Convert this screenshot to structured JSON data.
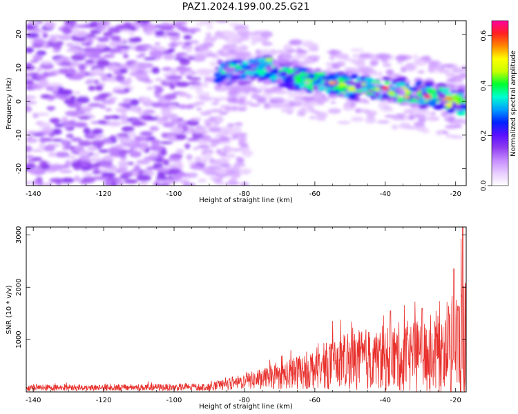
{
  "figure": {
    "title": "PAZ1.2024.199.00.25.G21"
  },
  "colors": {
    "background": "#ffffff",
    "axis": "#000000",
    "snr_line": "#e8302c",
    "colormap": [
      "#ffffff",
      "#e8ccff",
      "#c58cff",
      "#8f3cf0",
      "#5a10ff",
      "#0022ff",
      "#00a0ff",
      "#00ffd0",
      "#00ff30",
      "#c8ff00",
      "#ffff00",
      "#ff8800",
      "#ff2020",
      "#ff00a0"
    ]
  },
  "chart_data": [
    {
      "type": "heatmap",
      "title": "",
      "xlabel": "Height of straight line (km)",
      "ylabel": "Frequency (Hz)",
      "xlim": [
        -142,
        -17
      ],
      "ylim": [
        -25,
        24
      ],
      "xticks": [
        -140,
        -120,
        -100,
        -80,
        -60,
        -40,
        -20
      ],
      "yticks": [
        -20,
        -10,
        0,
        10,
        20
      ],
      "colorbar": {
        "label": "Normalized spectral amplitude",
        "range": [
          0.0,
          0.66
        ],
        "ticks": [
          0.0,
          0.2,
          0.4,
          0.6
        ]
      },
      "ridge": {
        "description_points": [
          [
            -88,
            8
          ],
          [
            -75,
            10
          ],
          [
            -65,
            7
          ],
          [
            -55,
            5
          ],
          [
            -45,
            4
          ],
          [
            -35,
            3
          ],
          [
            -25,
            1.5
          ],
          [
            -17,
            -1
          ]
        ],
        "peak_amplitude": 0.66
      },
      "noise_region": {
        "x_range": [
          -142,
          -85
        ],
        "max_amplitude": 0.12
      }
    },
    {
      "type": "line",
      "title": "",
      "xlabel": "Height of straight line (km)",
      "ylabel": "SNR (10 * v/v)",
      "xlim": [
        -142,
        -17
      ],
      "ylim": [
        0,
        3150
      ],
      "xticks": [
        -140,
        -120,
        -100,
        -80,
        -60,
        -40,
        -20
      ],
      "yticks": [
        1000,
        2000,
        3000
      ],
      "series": [
        {
          "name": "",
          "envelope": [
            {
              "x": -142,
              "mean": 80,
              "spread": 60
            },
            {
              "x": -90,
              "mean": 90,
              "spread": 70
            },
            {
              "x": -80,
              "mean": 200,
              "spread": 150
            },
            {
              "x": -70,
              "mean": 300,
              "spread": 250
            },
            {
              "x": -60,
              "mean": 450,
              "spread": 400
            },
            {
              "x": -50,
              "mean": 600,
              "spread": 550
            },
            {
              "x": -40,
              "mean": 650,
              "spread": 650
            },
            {
              "x": -30,
              "mean": 700,
              "spread": 700
            },
            {
              "x": -22,
              "mean": 800,
              "spread": 900
            },
            {
              "x": -17,
              "mean": 900,
              "spread": 1500
            }
          ],
          "peaks": [
            {
              "x": -20.5,
              "y": 2350
            },
            {
              "x": -18,
              "y": 3150
            },
            {
              "x": -29.5,
              "y": 1600
            },
            {
              "x": -38.5,
              "y": 1550
            }
          ]
        }
      ]
    }
  ]
}
